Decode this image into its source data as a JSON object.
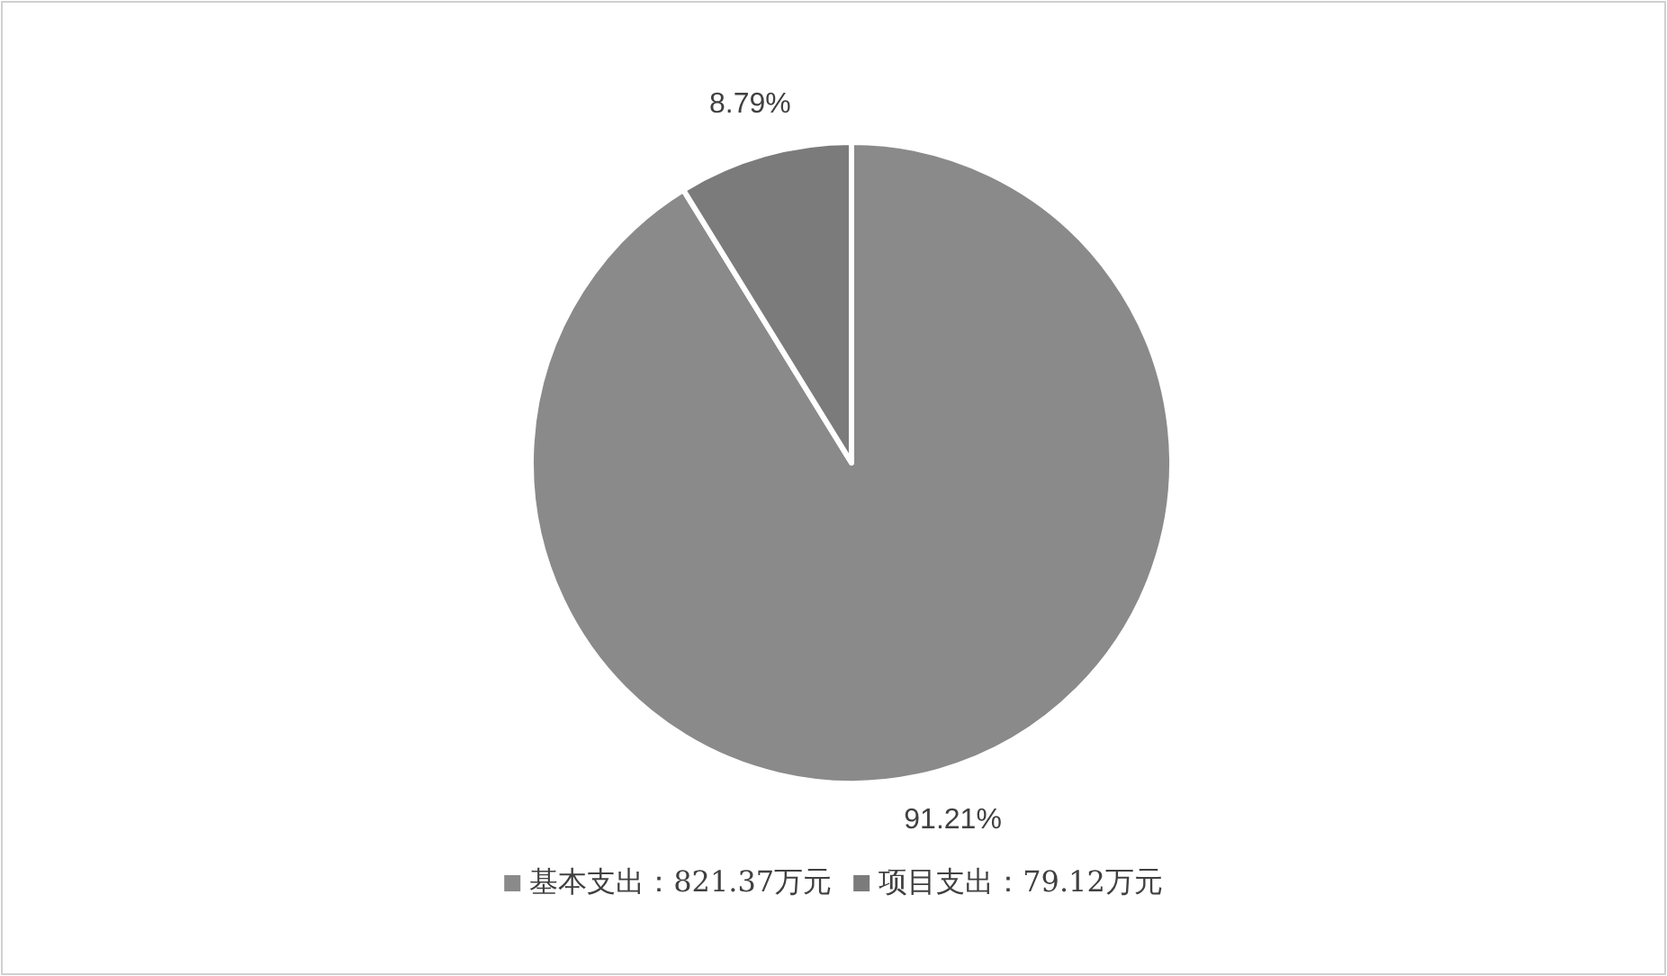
{
  "chart_data": {
    "type": "pie",
    "categories": [
      "基本支出：821.37万元",
      "项目支出：79.12万元"
    ],
    "values": [
      91.21,
      8.79
    ],
    "colors": [
      "#8a8a8a",
      "#7b7b7b"
    ],
    "value_labels": [
      "91.21%",
      "8.79%"
    ],
    "legend": "bottom"
  }
}
